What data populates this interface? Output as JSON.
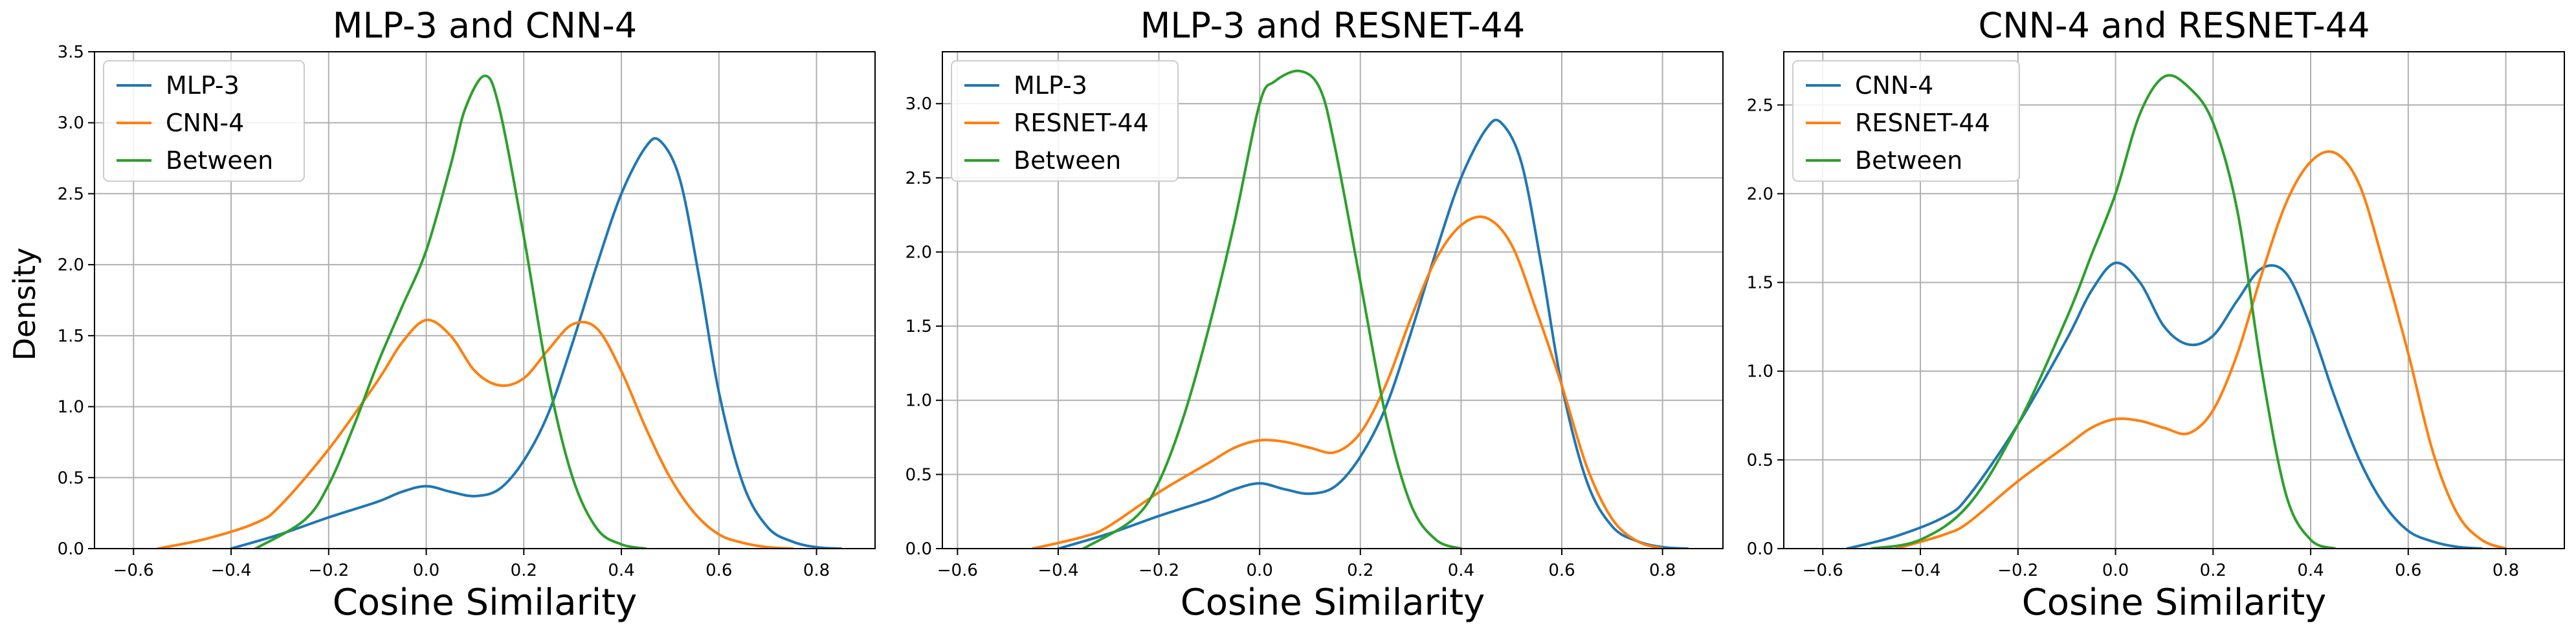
{
  "figure": {
    "ylabel_shared": "Density"
  },
  "colors": {
    "blue": "#1f77b4",
    "orange": "#ff7f0e",
    "green": "#2ca02c",
    "grid": "#b0b0b0",
    "frame": "#000000"
  },
  "chart_data": [
    {
      "type": "line",
      "title": "MLP-3 and CNN-4",
      "xlabel": "Cosine Similarity",
      "ylabel": "Density",
      "xlim": [
        -0.68,
        0.92
      ],
      "ylim": [
        0,
        3.5
      ],
      "xticks": [
        -0.6,
        -0.4,
        -0.2,
        0.0,
        0.2,
        0.4,
        0.6,
        0.8
      ],
      "xtick_labels": [
        "−0.6",
        "−0.4",
        "−0.2",
        "0.0",
        "0.2",
        "0.4",
        "0.6",
        "0.8"
      ],
      "yticks": [
        0,
        0.5,
        1.0,
        1.5,
        2.0,
        2.5,
        3.0,
        3.5
      ],
      "ytick_labels": [
        "0.0",
        "0.5",
        "1.0",
        "1.5",
        "2.0",
        "2.5",
        "3.0",
        "3.5"
      ],
      "grid": true,
      "legend": "top-left",
      "series": [
        {
          "name": "MLP-3",
          "color": "#1f77b4",
          "x": [
            -0.4,
            -0.3,
            -0.2,
            -0.1,
            -0.05,
            0.0,
            0.05,
            0.1,
            0.15,
            0.2,
            0.25,
            0.3,
            0.35,
            0.4,
            0.45,
            0.48,
            0.52,
            0.56,
            0.6,
            0.65,
            0.7,
            0.75,
            0.8,
            0.85
          ],
          "y": [
            0.0,
            0.1,
            0.22,
            0.33,
            0.4,
            0.44,
            0.4,
            0.37,
            0.42,
            0.62,
            0.95,
            1.45,
            2.0,
            2.5,
            2.83,
            2.87,
            2.6,
            1.9,
            1.1,
            0.45,
            0.15,
            0.05,
            0.01,
            0.0
          ]
        },
        {
          "name": "CNN-4",
          "color": "#ff7f0e",
          "x": [
            -0.55,
            -0.45,
            -0.35,
            -0.3,
            -0.2,
            -0.1,
            -0.05,
            0.0,
            0.05,
            0.1,
            0.15,
            0.2,
            0.25,
            0.3,
            0.35,
            0.4,
            0.45,
            0.5,
            0.55,
            0.6,
            0.65,
            0.7,
            0.75
          ],
          "y": [
            0.0,
            0.07,
            0.18,
            0.3,
            0.7,
            1.18,
            1.45,
            1.61,
            1.5,
            1.25,
            1.15,
            1.2,
            1.4,
            1.58,
            1.55,
            1.25,
            0.85,
            0.5,
            0.25,
            0.1,
            0.04,
            0.01,
            0.0
          ]
        },
        {
          "name": "Between",
          "color": "#2ca02c",
          "x": [
            -0.35,
            -0.25,
            -0.2,
            -0.15,
            -0.1,
            -0.05,
            0.0,
            0.05,
            0.08,
            0.12,
            0.15,
            0.2,
            0.25,
            0.3,
            0.35,
            0.4,
            0.45
          ],
          "y": [
            0.0,
            0.2,
            0.45,
            0.85,
            1.3,
            1.7,
            2.1,
            2.7,
            3.1,
            3.33,
            3.1,
            2.2,
            1.2,
            0.5,
            0.14,
            0.03,
            0.0
          ]
        }
      ]
    },
    {
      "type": "line",
      "title": "MLP-3 and RESNET-44",
      "xlabel": "Cosine Similarity",
      "ylabel": "",
      "xlim": [
        -0.63,
        0.92
      ],
      "ylim": [
        0,
        3.35
      ],
      "xticks": [
        -0.6,
        -0.4,
        -0.2,
        0.0,
        0.2,
        0.4,
        0.6,
        0.8
      ],
      "xtick_labels": [
        "−0.6",
        "−0.4",
        "−0.2",
        "0.0",
        "0.2",
        "0.4",
        "0.6",
        "0.8"
      ],
      "yticks": [
        0,
        0.5,
        1.0,
        1.5,
        2.0,
        2.5,
        3.0
      ],
      "ytick_labels": [
        "0.0",
        "0.5",
        "1.0",
        "1.5",
        "2.0",
        "2.5",
        "3.0"
      ],
      "grid": true,
      "legend": "top-left",
      "series": [
        {
          "name": "MLP-3",
          "color": "#1f77b4",
          "x": [
            -0.4,
            -0.3,
            -0.2,
            -0.1,
            -0.05,
            0.0,
            0.05,
            0.1,
            0.15,
            0.2,
            0.25,
            0.3,
            0.35,
            0.4,
            0.45,
            0.48,
            0.52,
            0.56,
            0.6,
            0.65,
            0.7,
            0.75,
            0.8,
            0.85
          ],
          "y": [
            0.0,
            0.1,
            0.22,
            0.33,
            0.4,
            0.44,
            0.4,
            0.37,
            0.42,
            0.62,
            0.95,
            1.45,
            2.0,
            2.5,
            2.83,
            2.87,
            2.6,
            1.9,
            1.1,
            0.45,
            0.15,
            0.05,
            0.01,
            0.0
          ]
        },
        {
          "name": "RESNET-44",
          "color": "#ff7f0e",
          "x": [
            -0.45,
            -0.35,
            -0.3,
            -0.2,
            -0.1,
            -0.05,
            0.0,
            0.05,
            0.1,
            0.15,
            0.2,
            0.25,
            0.3,
            0.35,
            0.4,
            0.45,
            0.5,
            0.55,
            0.6,
            0.65,
            0.7,
            0.75,
            0.8
          ],
          "y": [
            0.0,
            0.08,
            0.15,
            0.38,
            0.58,
            0.68,
            0.73,
            0.72,
            0.68,
            0.65,
            0.78,
            1.1,
            1.55,
            1.95,
            2.18,
            2.23,
            2.05,
            1.6,
            1.1,
            0.55,
            0.2,
            0.05,
            0.0
          ]
        },
        {
          "name": "Between",
          "color": "#2ca02c",
          "x": [
            -0.35,
            -0.25,
            -0.2,
            -0.15,
            -0.1,
            -0.05,
            0.0,
            0.03,
            0.08,
            0.12,
            0.15,
            0.2,
            0.25,
            0.3,
            0.35,
            0.4
          ],
          "y": [
            0.0,
            0.2,
            0.45,
            0.9,
            1.5,
            2.2,
            3.0,
            3.15,
            3.22,
            3.1,
            2.7,
            1.8,
            0.9,
            0.3,
            0.06,
            0.0
          ]
        }
      ]
    },
    {
      "type": "line",
      "title": "CNN-4 and RESNET-44",
      "xlabel": "Cosine Similarity",
      "ylabel": "",
      "xlim": [
        -0.68,
        0.92
      ],
      "ylim": [
        0,
        2.8
      ],
      "xticks": [
        -0.6,
        -0.4,
        -0.2,
        0.0,
        0.2,
        0.4,
        0.6,
        0.8
      ],
      "xtick_labels": [
        "−0.6",
        "−0.4",
        "−0.2",
        "0.0",
        "0.2",
        "0.4",
        "0.6",
        "0.8"
      ],
      "yticks": [
        0,
        0.5,
        1.0,
        1.5,
        2.0,
        2.5
      ],
      "ytick_labels": [
        "0.0",
        "0.5",
        "1.0",
        "1.5",
        "2.0",
        "2.5"
      ],
      "grid": true,
      "legend": "top-left",
      "series": [
        {
          "name": "CNN-4",
          "color": "#1f77b4",
          "x": [
            -0.55,
            -0.45,
            -0.35,
            -0.3,
            -0.2,
            -0.1,
            -0.05,
            0.0,
            0.05,
            0.1,
            0.15,
            0.2,
            0.25,
            0.3,
            0.35,
            0.4,
            0.45,
            0.5,
            0.55,
            0.6,
            0.65,
            0.7,
            0.75
          ],
          "y": [
            0.0,
            0.07,
            0.18,
            0.3,
            0.7,
            1.18,
            1.45,
            1.61,
            1.5,
            1.25,
            1.15,
            1.2,
            1.4,
            1.58,
            1.55,
            1.25,
            0.85,
            0.5,
            0.25,
            0.1,
            0.04,
            0.01,
            0.0
          ]
        },
        {
          "name": "RESNET-44",
          "color": "#ff7f0e",
          "x": [
            -0.45,
            -0.35,
            -0.3,
            -0.2,
            -0.1,
            -0.05,
            0.0,
            0.05,
            0.1,
            0.15,
            0.2,
            0.25,
            0.3,
            0.35,
            0.4,
            0.45,
            0.5,
            0.55,
            0.6,
            0.65,
            0.7,
            0.75,
            0.8
          ],
          "y": [
            0.0,
            0.08,
            0.15,
            0.38,
            0.58,
            0.68,
            0.73,
            0.72,
            0.68,
            0.65,
            0.78,
            1.1,
            1.55,
            1.95,
            2.18,
            2.23,
            2.05,
            1.6,
            1.1,
            0.55,
            0.2,
            0.05,
            0.0
          ]
        },
        {
          "name": "Between",
          "color": "#2ca02c",
          "x": [
            -0.5,
            -0.4,
            -0.3,
            -0.2,
            -0.1,
            -0.05,
            0.0,
            0.05,
            0.1,
            0.15,
            0.2,
            0.25,
            0.3,
            0.35,
            0.4,
            0.45
          ],
          "y": [
            0.0,
            0.05,
            0.25,
            0.7,
            1.3,
            1.65,
            2.0,
            2.45,
            2.66,
            2.6,
            2.4,
            1.9,
            1.0,
            0.3,
            0.05,
            0.0
          ]
        }
      ]
    }
  ]
}
